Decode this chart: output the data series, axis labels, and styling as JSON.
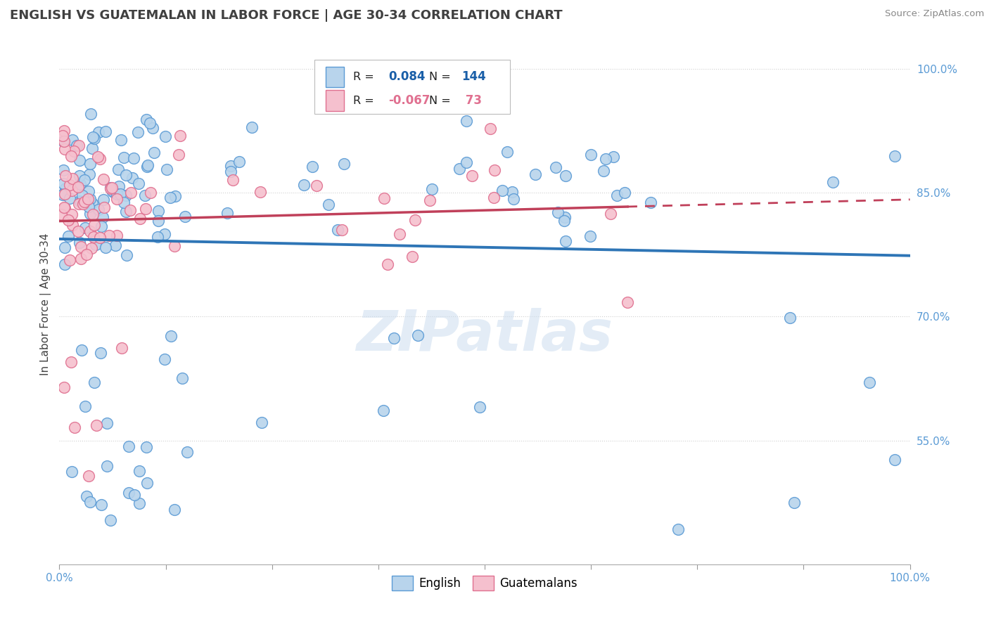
{
  "title": "ENGLISH VS GUATEMALAN IN LABOR FORCE | AGE 30-34 CORRELATION CHART",
  "source_text": "Source: ZipAtlas.com",
  "ylabel": "In Labor Force | Age 30-34",
  "ylabel_right_ticks": [
    1.0,
    0.85,
    0.7,
    0.55
  ],
  "ylabel_right_labels": [
    "100.0%",
    "85.0%",
    "70.0%",
    "55.0%"
  ],
  "xmin": 0.0,
  "xmax": 1.0,
  "ymin": 0.4,
  "ymax": 1.03,
  "english_R": 0.084,
  "english_N": 144,
  "guatemalan_R": -0.067,
  "guatemalan_N": 73,
  "english_fill_color": "#b8d4ec",
  "english_edge_color": "#5b9bd5",
  "guatemalan_fill_color": "#f5c0ce",
  "guatemalan_edge_color": "#e07090",
  "english_line_color": "#2e75b6",
  "guatemalan_line_color": "#c0405a",
  "background_color": "#ffffff",
  "grid_color": "#d0d0d0",
  "title_color": "#404040",
  "axis_tick_color": "#5b9bd5",
  "watermark_text": "ZIPatlas",
  "legend_R_color": "#1a5fa8",
  "legend_N_color": "#1a5fa8"
}
